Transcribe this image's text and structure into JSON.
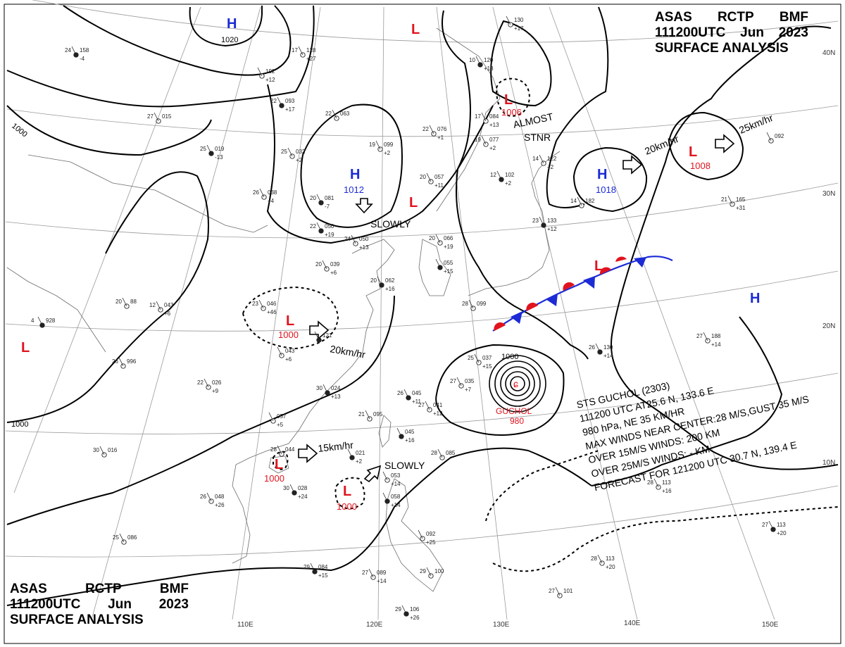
{
  "header_top": {
    "line1": [
      "ASAS",
      "RCTP",
      "BMF"
    ],
    "line2": [
      "111200UTC",
      "Jun",
      "2023"
    ],
    "line3": "SURFACE ANALYSIS"
  },
  "header_bottom": {
    "line1": [
      "ASAS",
      "RCTP",
      "BMF"
    ],
    "line2": [
      "111200UTC",
      "Jun",
      "2023"
    ],
    "line3": "SURFACE ANALYSIS"
  },
  "colors": {
    "high": "#1c2bd6",
    "low": "#e0141e",
    "warm_front": "#e0141e",
    "cold_front": "#1c2bd6",
    "isobar": "#000000",
    "graticule": "#9a9a9a"
  },
  "pressure_centers": [
    {
      "type": "H",
      "value": "1020"
    },
    {
      "type": "H",
      "value": "1012"
    },
    {
      "type": "H",
      "value": "1018"
    },
    {
      "type": "H",
      "value": ""
    },
    {
      "type": "L",
      "value": ""
    },
    {
      "type": "L",
      "value": ""
    },
    {
      "type": "L",
      "value": "1006"
    },
    {
      "type": "L",
      "value": "1008"
    },
    {
      "type": "L",
      "value": "1000"
    },
    {
      "type": "L",
      "value": "1000"
    },
    {
      "type": "L",
      "value": "1000"
    },
    {
      "type": "L",
      "value": ""
    },
    {
      "type": "L",
      "value": ""
    }
  ],
  "isobar_labels": [
    "1020",
    "1000",
    "1000",
    "1000"
  ],
  "motion_labels": [
    "SLOWLY",
    "20km/hr",
    "20km/hr",
    "25km/hr",
    "15km/hr",
    "SLOWLY",
    "ALMOST",
    "STNR"
  ],
  "typhoon": {
    "name": "GUCHOL",
    "pressure": "980",
    "info": [
      "STS  GUCHOL  (2303)",
      "111200 UTC  AT25.6 N, 133.6 E",
      "980 hPa, NE 35 KM/HR",
      "MAX WINDS NEAR CENTER:28 M/S,GUST 35 M/S",
      "OVER 15M/S WINDS: 200 KM",
      "OVER 25M/S WINDS: - KM",
      "FORECAST FOR 121200 UTC 30.7 N, 139.4 E"
    ]
  },
  "lat_labels": [
    "40N",
    "30N",
    "20N",
    "10N"
  ],
  "lon_labels": [
    "110E",
    "120E",
    "130E",
    "140E",
    "150E"
  ],
  "stations": [
    {
      "t": "24",
      "p": "158",
      "d": "-4"
    },
    {
      "t": "17",
      "p": "128",
      "d": "+27"
    },
    {
      "t": "",
      "p": "192",
      "d": "+12"
    },
    {
      "t": "22",
      "p": "093",
      "d": "+17"
    },
    {
      "t": "27",
      "p": "015",
      "d": ""
    },
    {
      "t": "22",
      "p": "063",
      "d": ""
    },
    {
      "t": "25",
      "p": "019",
      "d": "-13"
    },
    {
      "t": "25",
      "p": "032",
      "d": "+2"
    },
    {
      "t": "26",
      "p": "038",
      "d": "+4"
    },
    {
      "t": "20",
      "p": "081",
      "d": "-7"
    },
    {
      "t": "19",
      "p": "099",
      "d": "+2"
    },
    {
      "t": "22",
      "p": "076",
      "d": "+1"
    },
    {
      "t": "22",
      "p": "050",
      "d": "+19"
    },
    {
      "t": "24",
      "p": "050",
      "d": "+13"
    },
    {
      "t": "20",
      "p": "057",
      "d": "+11"
    },
    {
      "t": "10",
      "p": "120",
      "d": "+13"
    },
    {
      "t": "17",
      "p": "084",
      "d": "+13"
    },
    {
      "t": "19",
      "p": "077",
      "d": "+2"
    },
    {
      "t": "12",
      "p": "102",
      "d": "+2"
    },
    {
      "t": "14",
      "p": "122",
      "d": "+2"
    },
    {
      "t": "14",
      "p": "182",
      "d": ""
    },
    {
      "t": "23",
      "p": "133",
      "d": "+12"
    },
    {
      "t": "21",
      "p": "165",
      "d": "+31"
    },
    {
      "t": "20",
      "p": "066",
      "d": "+19"
    },
    {
      "t": "",
      "p": "055",
      "d": "+15"
    },
    {
      "t": "28",
      "p": "099",
      "d": ""
    },
    {
      "t": "20",
      "p": "039",
      "d": "+6"
    },
    {
      "t": "20",
      "p": "062",
      "d": "+16"
    },
    {
      "t": "12",
      "p": "043",
      "d": "+6"
    },
    {
      "t": "23",
      "p": "046",
      "d": "+46"
    },
    {
      "t": "",
      "p": "121",
      "d": ""
    },
    {
      "t": "",
      "p": "043",
      "d": "+6"
    },
    {
      "t": "20",
      "p": "88",
      "d": ""
    },
    {
      "t": "4",
      "p": "928",
      "d": ""
    },
    {
      "t": "26",
      "p": "996",
      "d": ""
    },
    {
      "t": "22",
      "p": "026",
      "d": "+9"
    },
    {
      "t": "30",
      "p": "024",
      "d": "+13"
    },
    {
      "t": "25",
      "p": "037",
      "d": "+15"
    },
    {
      "t": "27",
      "p": "035",
      "d": "+7"
    },
    {
      "t": "26",
      "p": "045",
      "d": "+11"
    },
    {
      "t": "27",
      "p": "041",
      "d": "+12"
    },
    {
      "t": "",
      "p": "057",
      "d": "+5"
    },
    {
      "t": "",
      "p": "045",
      "d": "+16"
    },
    {
      "t": "28",
      "p": "044",
      "d": ""
    },
    {
      "t": "21",
      "p": "095",
      "d": ""
    },
    {
      "t": "30",
      "p": "028",
      "d": "+24"
    },
    {
      "t": "26",
      "p": "048",
      "d": "+26"
    },
    {
      "t": "30",
      "p": "016",
      "d": ""
    },
    {
      "t": "",
      "p": "021",
      "d": "+2"
    },
    {
      "t": "28",
      "p": "085",
      "d": ""
    },
    {
      "t": "",
      "p": "053",
      "d": "+14"
    },
    {
      "t": "",
      "p": "058",
      "d": "+14"
    },
    {
      "t": "",
      "p": "092",
      "d": "+25"
    },
    {
      "t": "25",
      "p": "086",
      "d": ""
    },
    {
      "t": "29",
      "p": "084",
      "d": "+15"
    },
    {
      "t": "27",
      "p": "089",
      "d": "+14"
    },
    {
      "t": "29",
      "p": "100",
      "d": ""
    },
    {
      "t": "29",
      "p": "106",
      "d": "+26"
    },
    {
      "t": "27",
      "p": "101",
      "d": ""
    },
    {
      "t": "28",
      "p": "113",
      "d": "+20"
    },
    {
      "t": "27",
      "p": "113",
      "d": "+20"
    },
    {
      "t": "28",
      "p": "113",
      "d": "+16"
    },
    {
      "t": "27",
      "p": "188",
      "d": "+14"
    },
    {
      "t": "26",
      "p": "130",
      "d": "+14"
    },
    {
      "t": "",
      "p": "130",
      "d": "+17"
    },
    {
      "t": "",
      "p": "092",
      "d": ""
    }
  ]
}
